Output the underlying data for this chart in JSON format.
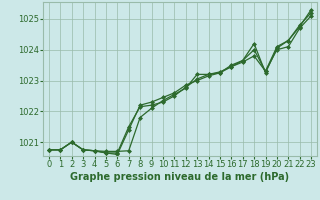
{
  "bg_color": "#cce8e8",
  "line_color": "#2d6a2d",
  "grid_color": "#99bbaa",
  "xlabel": "Graphe pression niveau de la mer (hPa)",
  "xlim": [
    -0.5,
    23.5
  ],
  "ylim": [
    1020.55,
    1025.55
  ],
  "yticks": [
    1021,
    1022,
    1023,
    1024,
    1025
  ],
  "xticks": [
    0,
    1,
    2,
    3,
    4,
    5,
    6,
    7,
    8,
    9,
    10,
    11,
    12,
    13,
    14,
    15,
    16,
    17,
    18,
    19,
    20,
    21,
    22,
    23
  ],
  "series": [
    [
      1020.75,
      1020.75,
      1021.0,
      1020.75,
      1020.72,
      1020.7,
      1020.7,
      1020.72,
      1021.8,
      1022.1,
      1022.35,
      1022.55,
      1022.75,
      1023.2,
      1023.2,
      1023.25,
      1023.5,
      1023.65,
      1024.2,
      1023.25,
      1024.05,
      1024.3,
      1024.75,
      1025.3
    ],
    [
      1020.75,
      1020.75,
      1021.0,
      1020.75,
      1020.72,
      1020.65,
      1020.65,
      1021.5,
      1022.15,
      1022.2,
      1022.3,
      1022.5,
      1022.78,
      1023.05,
      1023.2,
      1023.28,
      1023.45,
      1023.6,
      1023.8,
      1023.3,
      1024.0,
      1024.1,
      1024.7,
      1025.1
    ],
    [
      1020.75,
      1020.75,
      1021.0,
      1020.75,
      1020.72,
      1020.65,
      1020.6,
      1021.4,
      1022.2,
      1022.3,
      1022.45,
      1022.6,
      1022.85,
      1023.0,
      1023.15,
      1023.25,
      1023.45,
      1023.65,
      1024.0,
      1023.3,
      1024.1,
      1024.3,
      1024.8,
      1025.2
    ]
  ],
  "marker": "D",
  "marker_size": 2.0,
  "line_width": 0.9,
  "tick_fontsize": 6,
  "xlabel_fontsize": 7,
  "tick_color": "#2d6a2d",
  "xlabel_color": "#2d6a2d"
}
